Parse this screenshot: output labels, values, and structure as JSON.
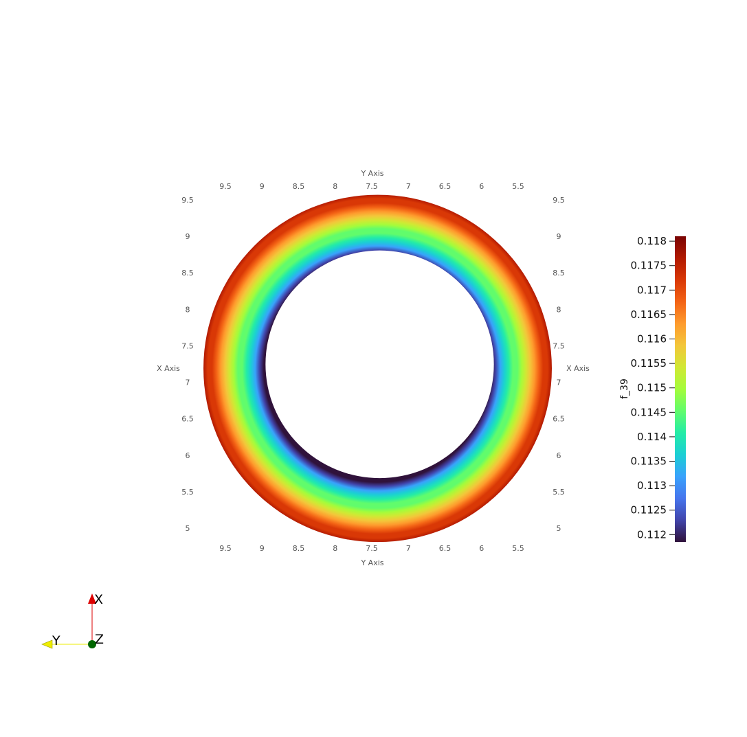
{
  "chart_data": {
    "type": "heatmap",
    "description_free": true,
    "y_axis": {
      "title": "Y Axis",
      "ticks": [
        9.5,
        9,
        8.5,
        8,
        7.5,
        7,
        6.5,
        6,
        5.5
      ],
      "tick_labels": [
        "9.5",
        "9",
        "8.5",
        "8",
        "7.5",
        "7",
        "6.5",
        "6",
        "5.5"
      ],
      "range": [
        9.5,
        5.5
      ]
    },
    "x_axis": {
      "title": "X Axis",
      "ticks": [
        9.5,
        9,
        8.5,
        8,
        7.5,
        7,
        6.5,
        6,
        5.5,
        5
      ],
      "tick_labels": [
        "9.5",
        "9",
        "8.5",
        "8",
        "7.5",
        "7",
        "6.5",
        "6",
        "5.5",
        "5"
      ],
      "range": [
        9.5,
        5
      ]
    },
    "colorbar": {
      "title": "f_39",
      "range": [
        0.11185,
        0.1181
      ],
      "ticks": [
        0.118,
        0.1175,
        0.117,
        0.1165,
        0.116,
        0.1155,
        0.115,
        0.1145,
        0.114,
        0.1135,
        0.113,
        0.1125,
        0.112
      ],
      "tick_labels": [
        "0.118",
        "0.1175",
        "0.117",
        "0.1165",
        "0.116",
        "0.1155",
        "0.115",
        "0.1145",
        "0.114",
        "0.1135",
        "0.113",
        "0.1125",
        "0.112"
      ],
      "colormap": [
        "#30123b",
        "#4145ab",
        "#4675ed",
        "#39a2fc",
        "#1bcfd4",
        "#24eca6",
        "#61fc6c",
        "#a4fc3b",
        "#d1e834",
        "#f3c63a",
        "#fe9b2d",
        "#f36315",
        "#d93806",
        "#b11901",
        "#7a0403"
      ]
    },
    "field": {
      "shape": "annulus",
      "center": {
        "x": 7.19,
        "y": 7.42
      },
      "inner_radius": 1.56,
      "outer_radius": 2.38,
      "value_inner": 0.1119,
      "value_outer": 0.1177
    }
  },
  "orientation_axes": {
    "x_label": "X",
    "y_label": "Y",
    "z_label": "Z",
    "x_color": "#dd0000",
    "y_color": "#eeee00",
    "z_color": "#006600"
  }
}
